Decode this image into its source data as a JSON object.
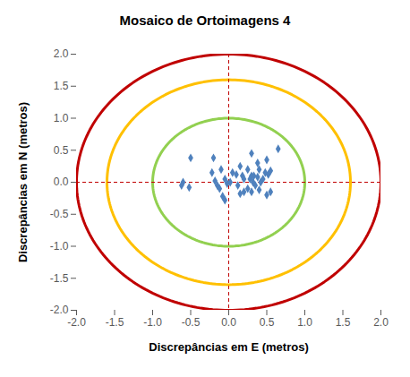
{
  "chart_data": {
    "type": "scatter",
    "title": "Mosaico de Ortoimagens 4",
    "x_label": "Discrepâncias em E (metros)",
    "y_label": "Discrepâncias em N (metros)",
    "xlim": [
      -2.0,
      2.0
    ],
    "ylim": [
      -2.0,
      2.0
    ],
    "xticks": [
      {
        "value": -2,
        "label": "-2.0"
      },
      {
        "value": -1.5,
        "label": "-1.5"
      },
      {
        "value": -1,
        "label": "-1.0"
      },
      {
        "value": -0.5,
        "label": "-0.5"
      },
      {
        "value": 0,
        "label": "0.0"
      },
      {
        "value": 0.5,
        "label": "0.5"
      },
      {
        "value": 1,
        "label": "1.0"
      },
      {
        "value": 1.5,
        "label": "1.5"
      },
      {
        "value": 2,
        "label": "2.0"
      }
    ],
    "yticks": [
      {
        "value": -2,
        "label": "-2.0"
      },
      {
        "value": -1.5,
        "label": "-1.5"
      },
      {
        "value": -1,
        "label": "-1.0"
      },
      {
        "value": -0.5,
        "label": "-0.5"
      },
      {
        "value": 0,
        "label": "0.0"
      },
      {
        "value": 0.5,
        "label": "0.5"
      },
      {
        "value": 1,
        "label": "1.0"
      },
      {
        "value": 1.5,
        "label": "1.5"
      },
      {
        "value": 2,
        "label": "2.0"
      }
    ],
    "grid": false,
    "color": "#4f81bd",
    "marker": "diamond",
    "x": [
      -0.6,
      -0.62,
      -0.5,
      -0.52,
      -0.2,
      -0.22,
      -0.18,
      -0.15,
      -0.1,
      -0.12,
      -0.08,
      -0.05,
      -0.02,
      0.02,
      -0.05,
      0.05,
      0.1,
      0.12,
      0.15,
      0.18,
      0.2,
      0.15,
      0.2,
      0.25,
      0.28,
      0.3,
      0.3,
      0.32,
      0.35,
      0.33,
      0.38,
      0.38,
      0.4,
      0.42,
      0.4,
      0.45,
      0.48,
      0.5,
      0.5,
      0.52,
      0.55,
      0.55,
      0.65,
      0.3,
      0.25
    ],
    "values": [
      0.0,
      -0.05,
      0.38,
      -0.08,
      0.38,
      0.15,
      0.02,
      -0.05,
      0.2,
      -0.1,
      -0.22,
      -0.28,
      -0.02,
      0.0,
      0.05,
      0.15,
      0.12,
      -0.05,
      0.25,
      0.1,
      0.05,
      -0.18,
      -0.15,
      -0.1,
      0.05,
      0.45,
      0.1,
      0.0,
      -0.05,
      0.1,
      0.3,
      0.08,
      0.2,
      0.0,
      -0.12,
      0.05,
      0.15,
      0.35,
      -0.2,
      0.12,
      -0.15,
      0.18,
      0.52,
      -0.15,
      0.2
    ],
    "circles": [
      {
        "radius": 1.0,
        "color": "#92d050"
      },
      {
        "radius": 1.6,
        "color": "#ffc000"
      },
      {
        "radius": 2.0,
        "color": "#c00000"
      }
    ],
    "reference_lines": {
      "x": 0,
      "y": 0,
      "color": "#c00000",
      "line_style": "dashed"
    }
  }
}
